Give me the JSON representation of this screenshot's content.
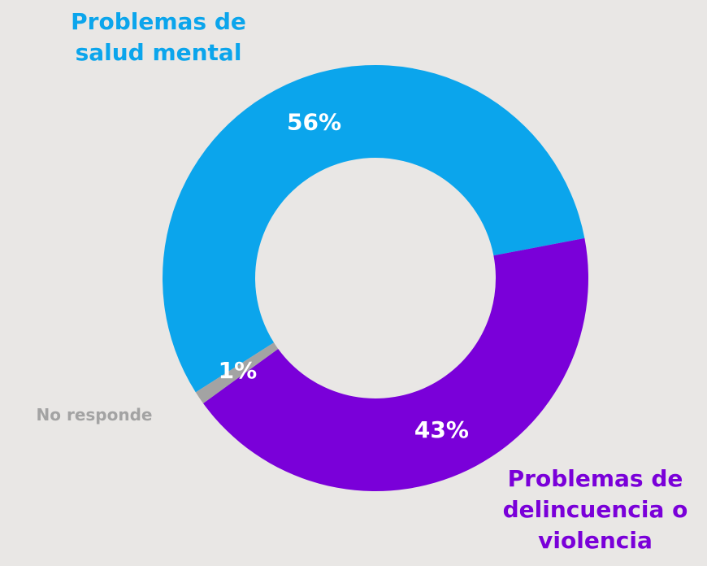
{
  "chart_data": {
    "type": "donut",
    "categories": [
      "Problemas de salud mental",
      "Problemas de delincuencia o violencia",
      "No responde"
    ],
    "values": [
      56,
      43,
      1
    ],
    "value_labels": [
      "56%",
      "43%",
      "1%"
    ],
    "colors": [
      "#0ba5ec",
      "#7a00d9",
      "#a3a3a3"
    ]
  }
}
